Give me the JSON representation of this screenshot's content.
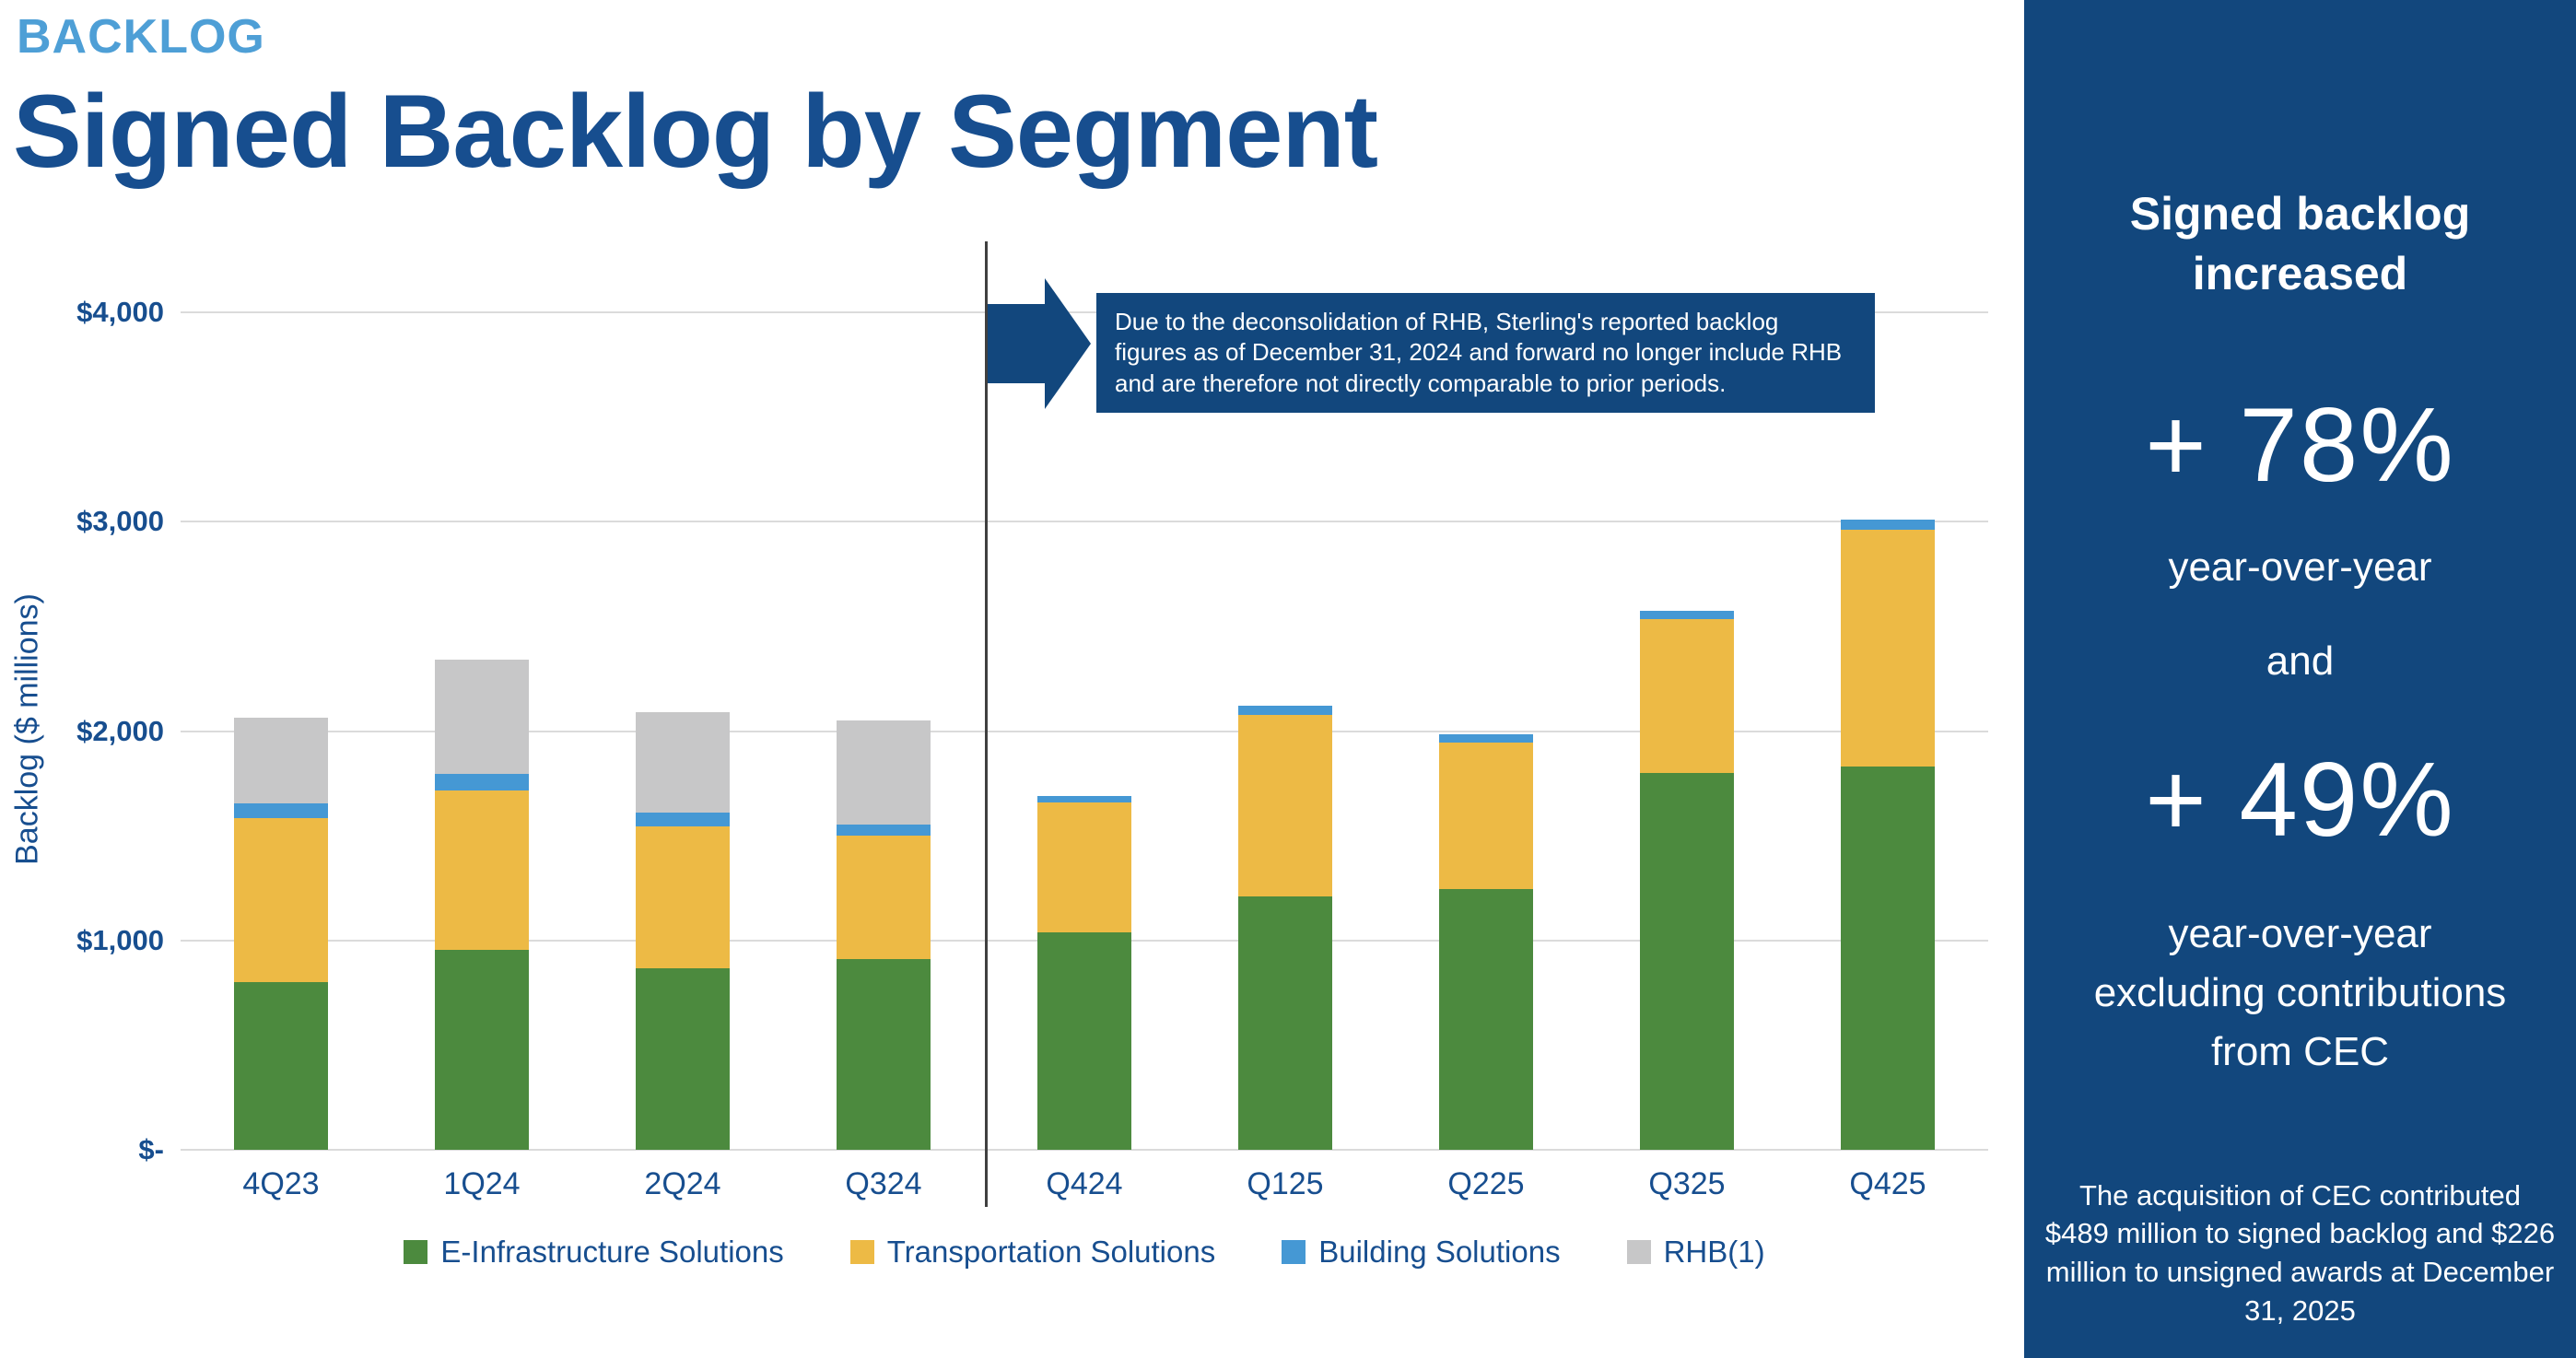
{
  "header": {
    "eyebrow": "BACKLOG",
    "title": "Signed Backlog by Segment"
  },
  "chart_data": {
    "type": "bar",
    "stacked": true,
    "ylabel": "Backlog ($ millions)",
    "ylim": [
      0,
      4000
    ],
    "yticks": [
      0,
      1000,
      2000,
      3000,
      4000
    ],
    "ytick_labels": [
      "$-",
      "$1,000",
      "$2,000",
      "$3,000",
      "$4,000"
    ],
    "categories": [
      "4Q23",
      "1Q24",
      "2Q24",
      "Q324",
      "Q424",
      "Q125",
      "Q225",
      "Q325",
      "Q425"
    ],
    "series": [
      {
        "name": "E-Infrastructure Solutions",
        "color": "#4C8A3E",
        "values": [
          800,
          955,
          865,
          910,
          1040,
          1210,
          1245,
          1800,
          1830
        ]
      },
      {
        "name": "Transportation Solutions",
        "color": "#EDBA45",
        "values": [
          785,
          760,
          680,
          590,
          620,
          865,
          700,
          735,
          1130
        ]
      },
      {
        "name": "Building Solutions",
        "color": "#4598D4",
        "values": [
          70,
          80,
          65,
          55,
          30,
          45,
          40,
          40,
          50
        ]
      },
      {
        "name": "RHB(1)",
        "color": "#C7C7C8",
        "values": [
          410,
          545,
          480,
          495,
          0,
          0,
          0,
          0,
          0
        ]
      }
    ],
    "legend_position": "bottom",
    "grid": true,
    "divider_after_category": "Q324",
    "annotation": "Due to the deconsolidation of RHB, Sterling's reported  backlog figures as of December 31, 2024 and forward no longer include RHB and are therefore not directly comparable to prior periods."
  },
  "sidebar": {
    "heading": "Signed backlog increased",
    "stat1": {
      "value": "+ 78%",
      "caption": "year-over-year"
    },
    "connector": "and",
    "stat2": {
      "value": "+ 49%",
      "caption": "year-over-year excluding contributions from CEC"
    },
    "footnote": "The acquisition of CEC contributed $489 million to signed backlog and $226 million to unsigned awards  at December 31, 2025"
  }
}
